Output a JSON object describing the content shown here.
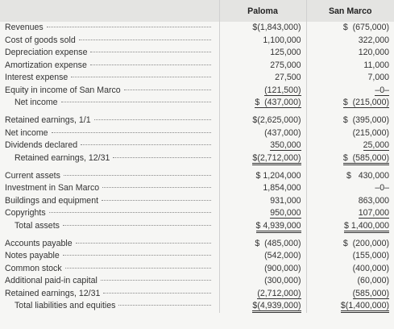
{
  "header": {
    "columns": [
      "Paloma",
      "San Marco"
    ]
  },
  "sections": [
    [
      [
        "Revenues",
        "$(1,843,000)",
        "$  (675,000)"
      ],
      [
        "Cost of goods sold",
        "1,100,000",
        "322,000"
      ],
      [
        "Depreciation expense",
        "125,000",
        "120,000"
      ],
      [
        "Amortization expense",
        "275,000",
        "11,000"
      ],
      [
        "Interest expense",
        "27,500",
        "7,000"
      ],
      [
        "Equity in income of San Marco",
        "(121,500)",
        "–0–"
      ],
      [
        "Net income",
        "$  (437,000)",
        "$  (215,000)"
      ]
    ],
    [
      [
        "Retained earnings, 1/1",
        "$(2,625,000)",
        "$  (395,000)"
      ],
      [
        "Net income",
        "(437,000)",
        "(215,000)"
      ],
      [
        "Dividends declared",
        "350,000",
        "25,000"
      ],
      [
        "Retained earnings, 12/31",
        "$(2,712,000)",
        "$  (585,000)"
      ]
    ],
    [
      [
        "Current assets",
        "$ 1,204,000",
        "$   430,000"
      ],
      [
        "Investment in San Marco",
        "1,854,000",
        "–0–"
      ],
      [
        "Buildings and equipment",
        "931,000",
        "863,000"
      ],
      [
        "Copyrights",
        "950,000",
        "107,000"
      ],
      [
        "Total assets",
        "$ 4,939,000",
        "$ 1,400,000"
      ]
    ],
    [
      [
        "Accounts payable",
        "$  (485,000)",
        "$  (200,000)"
      ],
      [
        "Notes payable",
        "(542,000)",
        "(155,000)"
      ],
      [
        "Common stock",
        "(900,000)",
        "(400,000)"
      ],
      [
        "Additional paid-in capital",
        "(300,000)",
        "(60,000)"
      ],
      [
        "Retained earnings, 12/31",
        "(2,712,000)",
        "(585,000)"
      ],
      [
        "Total liabilities and equities",
        "$(4,939,000)",
        "$(1,400,000)"
      ]
    ]
  ]
}
